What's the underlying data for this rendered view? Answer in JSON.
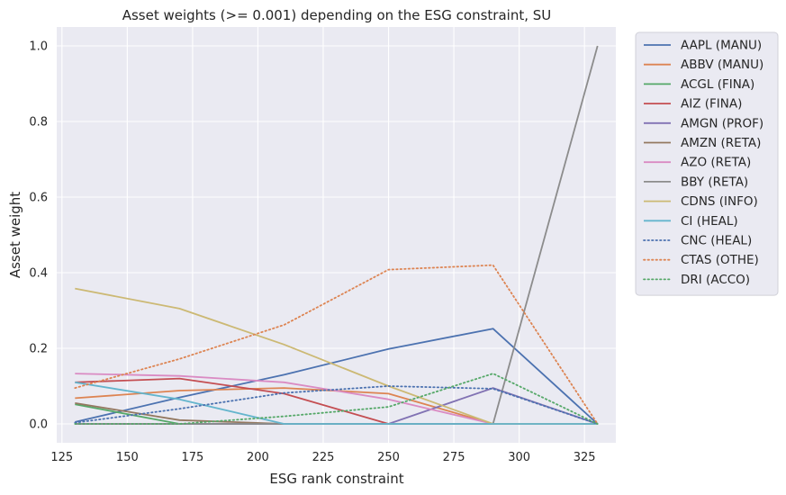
{
  "chart_data": {
    "type": "line",
    "title": "Asset weights (>= 0.001) depending on the ESG constraint, SU",
    "xlabel": "ESG rank constraint",
    "ylabel": "Asset weight",
    "xlim": [
      123,
      337
    ],
    "ylim": [
      -0.05,
      1.05
    ],
    "xticks": [
      125,
      150,
      175,
      200,
      225,
      250,
      275,
      300,
      325
    ],
    "yticks": [
      0.0,
      0.2,
      0.4,
      0.6,
      0.8,
      1.0
    ],
    "ytick_labels": [
      "0.0",
      "0.2",
      "0.4",
      "0.6",
      "0.8",
      "1.0"
    ],
    "grid": true,
    "legend_position": "outside-right",
    "x": [
      130,
      170,
      210,
      250,
      290,
      330
    ],
    "series": [
      {
        "name": "AAPL (MANU)",
        "color": "#4c72b0",
        "style": "solid",
        "values": [
          0.005,
          0.07,
          0.13,
          0.198,
          0.252,
          0.0
        ]
      },
      {
        "name": "ABBV (MANU)",
        "color": "#dd8452",
        "style": "solid",
        "values": [
          0.068,
          0.088,
          0.095,
          0.08,
          0.0,
          0.0
        ]
      },
      {
        "name": "ACGL (FINA)",
        "color": "#55a868",
        "style": "solid",
        "values": [
          0.052,
          0.0,
          0.0,
          0.0,
          0.0,
          0.0
        ]
      },
      {
        "name": "AIZ (FINA)",
        "color": "#c44e52",
        "style": "solid",
        "values": [
          0.11,
          0.12,
          0.08,
          0.0,
          0.0,
          0.0
        ]
      },
      {
        "name": "AMGN (PROF)",
        "color": "#8172b3",
        "style": "solid",
        "values": [
          0.0,
          0.0,
          0.0,
          0.0,
          0.095,
          0.0
        ]
      },
      {
        "name": "AMZN (RETA)",
        "color": "#937860",
        "style": "solid",
        "values": [
          0.055,
          0.01,
          0.0,
          0.0,
          0.0,
          0.0
        ]
      },
      {
        "name": "AZO (RETA)",
        "color": "#da8bc3",
        "style": "solid",
        "values": [
          0.133,
          0.127,
          0.11,
          0.065,
          0.0,
          0.0
        ]
      },
      {
        "name": "BBY (RETA)",
        "color": "#8c8c8c",
        "style": "solid",
        "values": [
          0.0,
          0.0,
          0.0,
          0.0,
          0.0,
          1.0
        ]
      },
      {
        "name": "CDNS (INFO)",
        "color": "#ccb974",
        "style": "solid",
        "values": [
          0.358,
          0.305,
          0.21,
          0.1,
          0.0,
          0.0
        ]
      },
      {
        "name": "CI (HEAL)",
        "color": "#64b5cd",
        "style": "solid",
        "values": [
          0.11,
          0.065,
          0.0,
          0.0,
          0.0,
          0.0
        ]
      },
      {
        "name": "CNC (HEAL)",
        "color": "#4c72b0",
        "style": "dotted",
        "values": [
          0.003,
          0.04,
          0.082,
          0.1,
          0.093,
          0.0
        ]
      },
      {
        "name": "CTAS (OTHE)",
        "color": "#dd8452",
        "style": "dotted",
        "values": [
          0.095,
          0.172,
          0.262,
          0.408,
          0.42,
          0.0
        ]
      },
      {
        "name": "DRI (ACCO)",
        "color": "#55a868",
        "style": "dotted",
        "values": [
          0.0,
          0.0,
          0.02,
          0.045,
          0.133,
          0.0
        ]
      }
    ]
  }
}
